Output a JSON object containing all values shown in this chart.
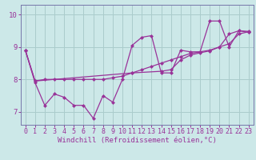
{
  "xlabel": "Windchill (Refroidissement éolien,°C)",
  "bg_color": "#cce8e8",
  "grid_color": "#aacccc",
  "line_color": "#993399",
  "spine_color": "#7777aa",
  "xlim": [
    -0.5,
    23.5
  ],
  "ylim": [
    6.6,
    10.3
  ],
  "xticks": [
    0,
    1,
    2,
    3,
    4,
    5,
    6,
    7,
    8,
    9,
    10,
    11,
    12,
    13,
    14,
    15,
    16,
    17,
    18,
    19,
    20,
    21,
    22,
    23
  ],
  "yticks": [
    7,
    8,
    9,
    10
  ],
  "series1_x": [
    0,
    1,
    2,
    3,
    4,
    5,
    6,
    7,
    8,
    9,
    10,
    11,
    12,
    13,
    14,
    15,
    16,
    17,
    18,
    19,
    20,
    21,
    22,
    23
  ],
  "series1_y": [
    8.9,
    7.9,
    7.2,
    7.55,
    7.45,
    7.2,
    7.2,
    6.8,
    7.5,
    7.3,
    8.0,
    9.05,
    9.3,
    9.35,
    8.2,
    8.2,
    8.9,
    8.85,
    8.85,
    9.8,
    9.8,
    9.0,
    9.5,
    9.45
  ],
  "series2_x": [
    0,
    1,
    11,
    14,
    15,
    16,
    17,
    18,
    19,
    20,
    21,
    22,
    23
  ],
  "series2_y": [
    8.9,
    7.95,
    8.2,
    8.25,
    8.3,
    8.6,
    8.75,
    8.82,
    8.88,
    9.0,
    9.4,
    9.5,
    9.48
  ],
  "series3_x": [
    0,
    1,
    2,
    3,
    4,
    5,
    6,
    7,
    8,
    9,
    10,
    11,
    12,
    13,
    14,
    15,
    16,
    17,
    18,
    19,
    20,
    21,
    22,
    23
  ],
  "series3_y": [
    8.9,
    7.95,
    8.0,
    8.0,
    8.0,
    8.0,
    8.0,
    8.0,
    8.0,
    8.05,
    8.1,
    8.2,
    8.3,
    8.4,
    8.5,
    8.6,
    8.7,
    8.8,
    8.85,
    8.9,
    9.0,
    9.1,
    9.4,
    9.47
  ],
  "marker": "D",
  "markersize": 2.5,
  "linewidth": 0.9,
  "tick_fontsize": 6,
  "label_fontsize": 6.5
}
